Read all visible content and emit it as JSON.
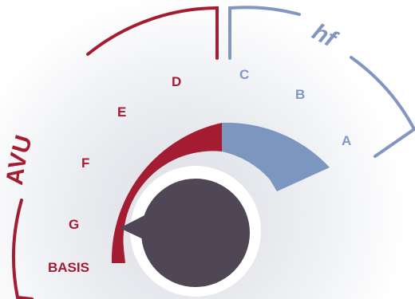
{
  "brackets": {
    "left": {
      "label": "AVU",
      "color": "#a31c32"
    },
    "right": {
      "label": "hf",
      "color": "#8197c1"
    }
  },
  "levels": {
    "left": [
      "BASIS",
      "G",
      "F",
      "E",
      "D"
    ],
    "right": [
      "C",
      "B",
      "A"
    ]
  },
  "colors": {
    "left_fill": "#a31c32",
    "right_fill": "#7d96bf",
    "knob": "#4f4656",
    "background_glow": "#e6e7ec"
  },
  "pointer_level": "BASIS"
}
